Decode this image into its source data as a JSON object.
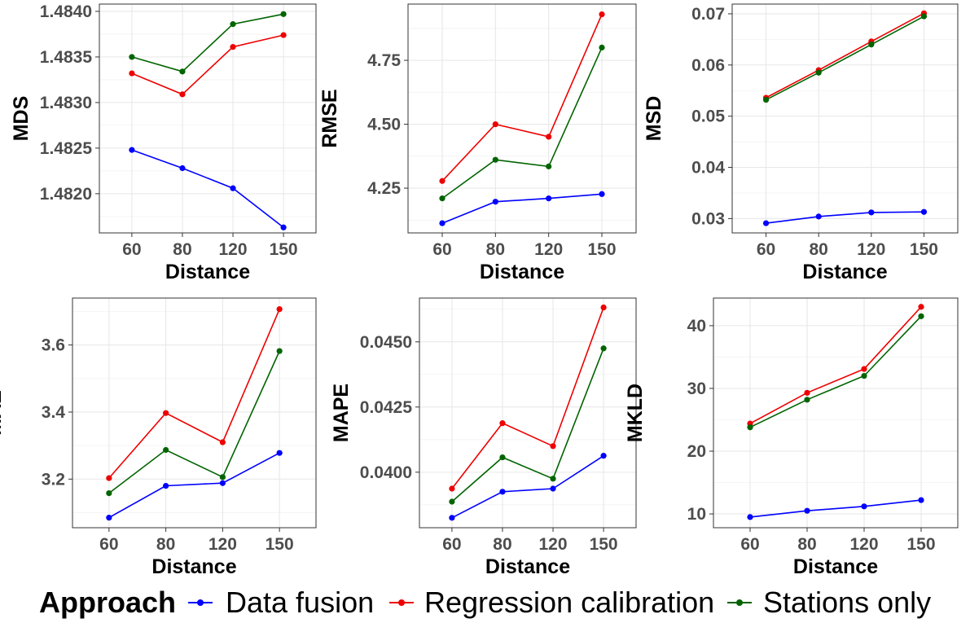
{
  "chart_data": [
    {
      "type": "line",
      "xlabel": "Distance",
      "ylabel": "MDS",
      "categories": [
        "60",
        "80",
        "120",
        "150"
      ],
      "ylim": [
        1.48157,
        1.48408
      ],
      "yticks": [
        1.482,
        1.4825,
        1.483,
        1.4835,
        1.484
      ],
      "yticklabels": [
        "1.4820",
        "1.4825",
        "1.4830",
        "1.4835",
        "1.4840"
      ],
      "series": [
        {
          "name": "Data fusion",
          "values": [
            1.48248,
            1.48228,
            1.48206,
            1.48163
          ]
        },
        {
          "name": "Regression calibration",
          "values": [
            1.48332,
            1.48309,
            1.48361,
            1.48374
          ]
        },
        {
          "name": "Stations only",
          "values": [
            1.4835,
            1.48334,
            1.48386,
            1.48397
          ]
        }
      ]
    },
    {
      "type": "line",
      "xlabel": "Distance",
      "ylabel": "RMSE",
      "categories": [
        "60",
        "80",
        "120",
        "150"
      ],
      "ylim": [
        4.075,
        4.97
      ],
      "yticks": [
        4.25,
        4.5,
        4.75
      ],
      "yticklabels": [
        "4.25",
        "4.50",
        "4.75"
      ],
      "series": [
        {
          "name": "Data fusion",
          "values": [
            4.113,
            4.197,
            4.21,
            4.227
          ]
        },
        {
          "name": "Regression calibration",
          "values": [
            4.278,
            4.5,
            4.451,
            4.93
          ]
        },
        {
          "name": "Stations only",
          "values": [
            4.21,
            4.361,
            4.335,
            4.8
          ]
        }
      ]
    },
    {
      "type": "line",
      "xlabel": "Distance",
      "ylabel": "MSD",
      "categories": [
        "60",
        "80",
        "120",
        "150"
      ],
      "ylim": [
        0.0272,
        0.0719
      ],
      "yticks": [
        0.03,
        0.04,
        0.05,
        0.06,
        0.07
      ],
      "yticklabels": [
        "0.03",
        "0.04",
        "0.05",
        "0.06",
        "0.07"
      ],
      "series": [
        {
          "name": "Data fusion",
          "values": [
            0.0291,
            0.0304,
            0.0312,
            0.0313
          ]
        },
        {
          "name": "Regression calibration",
          "values": [
            0.0536,
            0.059,
            0.0646,
            0.0701
          ]
        },
        {
          "name": "Stations only",
          "values": [
            0.0532,
            0.0585,
            0.064,
            0.0695
          ]
        }
      ]
    },
    {
      "type": "line",
      "xlabel": "Distance",
      "ylabel": "MAE",
      "categories": [
        "60",
        "80",
        "120",
        "150"
      ],
      "ylim": [
        3.055,
        3.74
      ],
      "yticks": [
        3.2,
        3.4,
        3.6
      ],
      "yticklabels": [
        "3.2",
        "3.4",
        "3.6"
      ],
      "series": [
        {
          "name": "Data fusion",
          "values": [
            3.085,
            3.18,
            3.188,
            3.278
          ]
        },
        {
          "name": "Regression calibration",
          "values": [
            3.203,
            3.397,
            3.31,
            3.707
          ]
        },
        {
          "name": "Stations only",
          "values": [
            3.158,
            3.287,
            3.206,
            3.582
          ]
        }
      ]
    },
    {
      "type": "line",
      "xlabel": "Distance",
      "ylabel": "MAPE",
      "categories": [
        "60",
        "80",
        "120",
        "150"
      ],
      "ylim": [
        0.03787,
        0.04668
      ],
      "yticks": [
        0.04,
        0.0425,
        0.045
      ],
      "yticklabels": [
        "0.0400",
        "0.0425",
        "0.0450"
      ],
      "series": [
        {
          "name": "Data fusion",
          "values": [
            0.03825,
            0.03925,
            0.03937,
            0.04063
          ]
        },
        {
          "name": "Regression calibration",
          "values": [
            0.03937,
            0.04188,
            0.041,
            0.04632
          ]
        },
        {
          "name": "Stations only",
          "values": [
            0.03887,
            0.04057,
            0.03975,
            0.04475
          ]
        }
      ]
    },
    {
      "type": "line",
      "xlabel": "Distance",
      "ylabel": "MKLD",
      "categories": [
        "60",
        "80",
        "120",
        "150"
      ],
      "ylim": [
        7.8,
        44.4
      ],
      "yticks": [
        10,
        20,
        30,
        40
      ],
      "yticklabels": [
        "10",
        "20",
        "30",
        "40"
      ],
      "series": [
        {
          "name": "Data fusion",
          "values": [
            9.5,
            10.5,
            11.2,
            12.2
          ]
        },
        {
          "name": "Regression calibration",
          "values": [
            24.4,
            29.3,
            33.1,
            43.0
          ]
        },
        {
          "name": "Stations only",
          "values": [
            23.8,
            28.2,
            32.0,
            41.5
          ]
        }
      ]
    }
  ],
  "legend": {
    "title": "Approach",
    "position": "bottom",
    "items": [
      {
        "label": "Data fusion",
        "color": "#0000ff"
      },
      {
        "label": "Regression calibration",
        "color": "#ee0000"
      },
      {
        "label": "Stations only",
        "color": "#006400"
      }
    ]
  }
}
